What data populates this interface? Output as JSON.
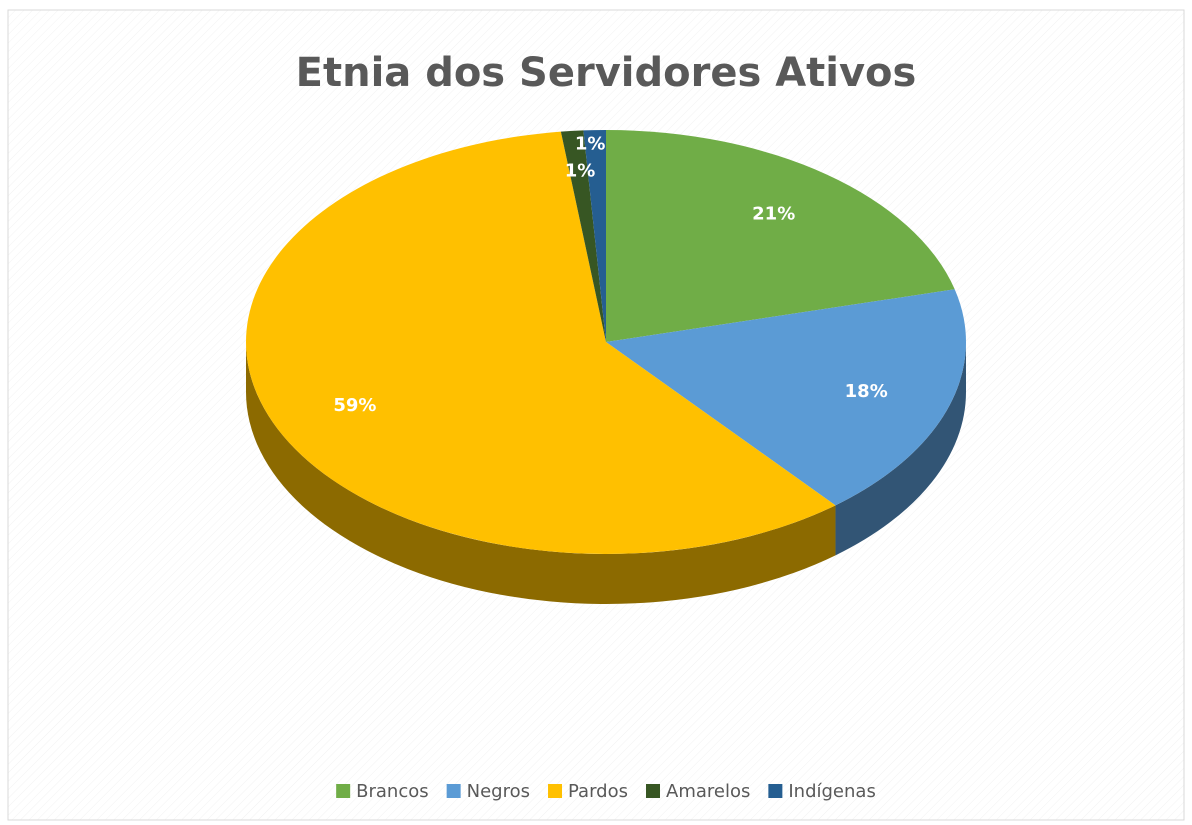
{
  "chart_data": {
    "type": "pie",
    "title": "Etnia dos Servidores Ativos",
    "categories": [
      "Brancos",
      "Negros",
      "Pardos",
      "Amarelos",
      "Indígenas"
    ],
    "values": [
      21,
      18,
      59,
      1,
      1
    ],
    "value_labels": [
      "21%",
      "18%",
      "59%",
      "1%",
      "1%"
    ],
    "colors": [
      "#70ad47",
      "#5b9bd5",
      "#ffc000",
      "#375623",
      "#255e91"
    ],
    "legend": "bottom"
  }
}
